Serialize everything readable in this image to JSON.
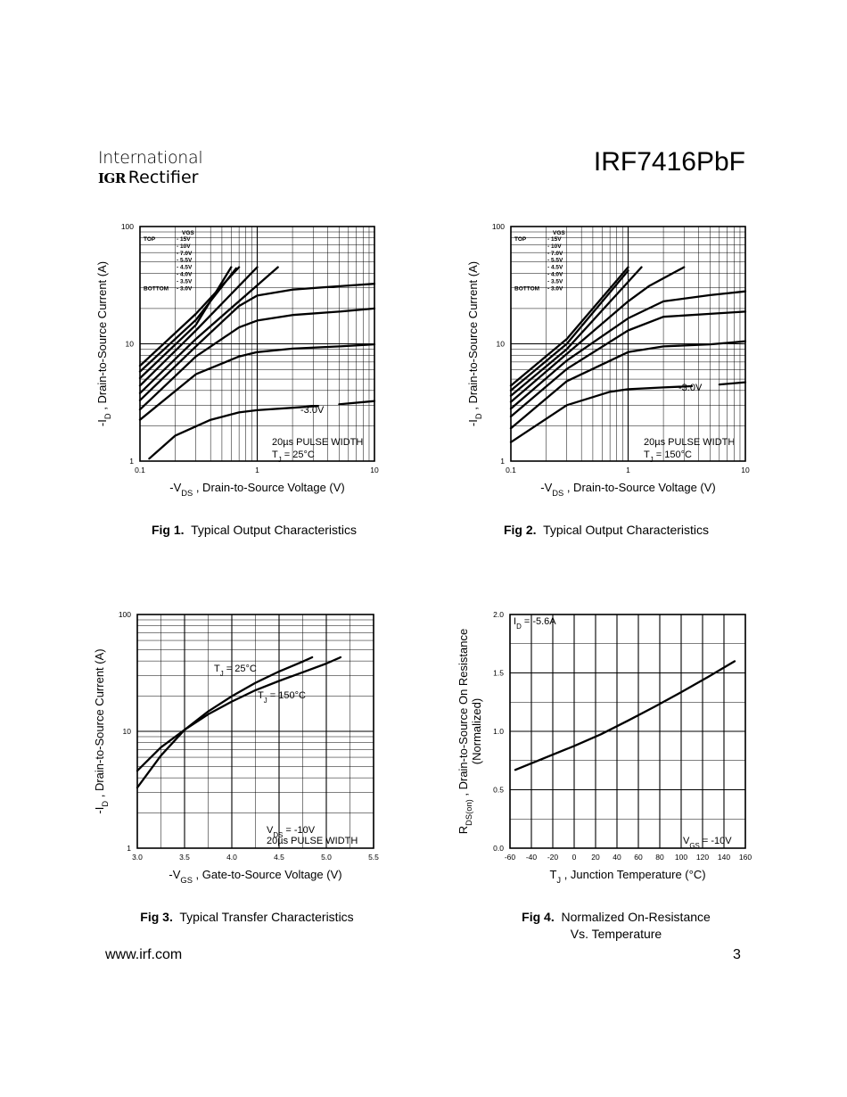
{
  "header": {
    "company_line1": "International",
    "company_logo_mark": "IGR",
    "company_line2": "Rectifier",
    "part_number": "IRF7416PbF"
  },
  "footer": {
    "url": "www.irf.com",
    "page_number": "3"
  },
  "captions": [
    {
      "fig": "Fig 1.",
      "text": "Typical Output Characteristics"
    },
    {
      "fig": "Fig 2.",
      "text": "Typical Output Characteristics"
    },
    {
      "fig": "Fig 3.",
      "text": "Typical Transfer Characteristics"
    },
    {
      "fig": "Fig 4.",
      "text": "Normalized On-Resistance",
      "text2": "Vs. Temperature"
    }
  ],
  "chart_data": [
    {
      "type": "line",
      "xscale": "log",
      "yscale": "log",
      "xlim": [
        0.1,
        10
      ],
      "ylim": [
        1,
        100
      ],
      "xticks": [
        "0.1",
        "1",
        "10"
      ],
      "yticks": [
        "1",
        "10",
        "100"
      ],
      "xlabel": "-V_DS , Drain-to-Source Voltage (V)",
      "ylabel": "-I_D , Drain-to-Source Current (A)",
      "legend_title": "VGS",
      "legend_rows": [
        {
          "prefix": "TOP",
          "value": "- 15V"
        },
        {
          "prefix": "",
          "value": "- 10V"
        },
        {
          "prefix": "",
          "value": "- 7.0V"
        },
        {
          "prefix": "",
          "value": "- 5.5V"
        },
        {
          "prefix": "",
          "value": "- 4.5V"
        },
        {
          "prefix": "",
          "value": "- 4.0V"
        },
        {
          "prefix": "",
          "value": "- 3.5V"
        },
        {
          "prefix": "BOTTOM",
          "value": "- 3.0V"
        }
      ],
      "note_lines": [
        "20µs PULSE WIDTH",
        "T_J = 25°C"
      ],
      "annotation": "-3.0V",
      "series": [
        {
          "x": [
            0.1,
            0.3,
            0.7
          ],
          "y": [
            6.5,
            18,
            45
          ]
        },
        {
          "x": [
            0.1,
            0.3,
            0.66
          ],
          "y": [
            5.8,
            16,
            44
          ]
        },
        {
          "x": [
            0.1,
            0.3,
            0.6
          ],
          "y": [
            5.1,
            14.5,
            45
          ]
        },
        {
          "x": [
            0.1,
            0.3,
            1.0
          ],
          "y": [
            4.4,
            13,
            45
          ]
        },
        {
          "x": [
            0.1,
            0.3,
            1.5
          ],
          "y": [
            3.8,
            11,
            45
          ]
        },
        {
          "x": [
            0.1,
            0.3,
            0.7,
            1.0,
            2.0,
            5.0,
            10.0
          ],
          "y": [
            3.3,
            9.5,
            21,
            25.8,
            29,
            31,
            32.5
          ]
        },
        {
          "x": [
            0.1,
            0.3,
            0.7,
            1.0,
            2.0,
            5.0,
            10.0
          ],
          "y": [
            2.75,
            7.8,
            13.8,
            15.8,
            17.6,
            18.8,
            20
          ]
        },
        {
          "x": [
            0.1,
            0.3,
            0.7,
            1.0,
            2.0,
            5.0,
            10.0
          ],
          "y": [
            2.25,
            5.5,
            7.8,
            8.5,
            9.1,
            9.5,
            9.9
          ]
        },
        {
          "x": [
            0.12,
            0.2,
            0.4,
            0.7,
            1.0,
            2.0,
            3.3
          ],
          "y": [
            1.05,
            1.65,
            2.25,
            2.6,
            2.72,
            2.85,
            2.95
          ]
        },
        {
          "x": [
            5.0,
            10.0
          ],
          "y": [
            3.05,
            3.25
          ]
        }
      ]
    },
    {
      "type": "line",
      "xscale": "log",
      "yscale": "log",
      "xlim": [
        0.1,
        10
      ],
      "ylim": [
        1,
        100
      ],
      "xticks": [
        "0.1",
        "1",
        "10"
      ],
      "yticks": [
        "1",
        "10",
        "100"
      ],
      "xlabel": "-V_DS , Drain-to-Source Voltage (V)",
      "ylabel": "-I_D , Drain-to-Source Current (A)",
      "legend_title": "VGS",
      "legend_rows": [
        {
          "prefix": "TOP",
          "value": "- 15V"
        },
        {
          "prefix": "",
          "value": "- 10V"
        },
        {
          "prefix": "",
          "value": "- 7.0V"
        },
        {
          "prefix": "",
          "value": "- 5.5V"
        },
        {
          "prefix": "",
          "value": "- 4.5V"
        },
        {
          "prefix": "",
          "value": "- 4.0V"
        },
        {
          "prefix": "",
          "value": "- 3.5V"
        },
        {
          "prefix": "BOTTOM",
          "value": "- 3.0V"
        }
      ],
      "note_lines": [
        "20µs PULSE WIDTH",
        "T_J = 150°C"
      ],
      "annotation": "-3.0V",
      "series": [
        {
          "x": [
            0.1,
            0.3,
            1.0
          ],
          "y": [
            4.4,
            11,
            45
          ]
        },
        {
          "x": [
            0.1,
            0.3,
            1.0
          ],
          "y": [
            4.0,
            10,
            42
          ]
        },
        {
          "x": [
            0.1,
            0.3,
            1.3
          ],
          "y": [
            3.6,
            9,
            45
          ]
        },
        {
          "x": [
            0.1,
            0.3,
            1.0,
            1.5,
            3.0
          ],
          "y": [
            3.2,
            8.2,
            23,
            31,
            45
          ]
        },
        {
          "x": [
            0.1,
            0.3,
            1.0,
            2.0,
            5.0,
            10.0
          ],
          "y": [
            2.8,
            7.2,
            16.5,
            23,
            26,
            28
          ]
        },
        {
          "x": [
            0.1,
            0.3,
            1.0,
            2.0,
            5.0,
            10.0
          ],
          "y": [
            2.4,
            6.1,
            13,
            17,
            18,
            18.8
          ]
        },
        {
          "x": [
            0.1,
            0.3,
            1.0,
            2.0,
            5.0,
            10.0
          ],
          "y": [
            1.9,
            4.8,
            8.5,
            9.5,
            9.9,
            10.5
          ]
        },
        {
          "x": [
            0.1,
            0.3,
            0.7,
            1.0,
            2.0,
            3.5
          ],
          "y": [
            1.45,
            3.0,
            3.9,
            4.1,
            4.25,
            4.35
          ]
        },
        {
          "x": [
            6.0,
            10.0
          ],
          "y": [
            4.5,
            4.7
          ]
        }
      ]
    },
    {
      "type": "line",
      "xscale": "linear",
      "yscale": "log",
      "xlim": [
        3.0,
        5.5
      ],
      "ylim": [
        1,
        100
      ],
      "xticks": [
        "3.0",
        "3.5",
        "4.0",
        "4.5",
        "5.0",
        "5.5"
      ],
      "yticks": [
        "1",
        "10",
        "100"
      ],
      "xlabel": "-V_GS , Gate-to-Source Voltage (V)",
      "ylabel": "-I_D , Drain-to-Source Current (A)",
      "note_lines": [
        "V_DS = -10V",
        "20µs PULSE WIDTH"
      ],
      "series": [
        {
          "name": "T_J = 25°C",
          "x": [
            3.0,
            3.25,
            3.5,
            3.75,
            4.0,
            4.25,
            4.5,
            4.75,
            4.85
          ],
          "y": [
            3.3,
            6.2,
            10.3,
            14.8,
            20,
            26,
            32.5,
            39.5,
            43
          ]
        },
        {
          "name": "T_J = 150°C",
          "x": [
            3.0,
            3.25,
            3.5,
            3.75,
            4.0,
            4.25,
            4.5,
            4.75,
            5.0,
            5.15
          ],
          "y": [
            4.6,
            7.3,
            10.3,
            14,
            18,
            22.5,
            27,
            32,
            38,
            43
          ]
        }
      ]
    },
    {
      "type": "line",
      "xscale": "linear",
      "yscale": "linear",
      "xlim": [
        -60,
        160
      ],
      "ylim": [
        0.0,
        2.0
      ],
      "xticks": [
        "-60",
        "-40",
        "-20",
        "0",
        "20",
        "40",
        "60",
        "80",
        "100",
        "120",
        "140",
        "160"
      ],
      "yticks": [
        "0.0",
        "0.5",
        "1.0",
        "1.5",
        "2.0"
      ],
      "xlabel": "T_J , Junction Temperature (°C)",
      "ylabel": "R_DS(on) , Drain-to-Source On Resistance",
      "ylabel2": "(Normalized)",
      "note_lines": [
        "I_D = -5.6A",
        "V_GS = -10V"
      ],
      "series": [
        {
          "x": [
            -55,
            0,
            25,
            50,
            75,
            100,
            125,
            150
          ],
          "y": [
            0.67,
            0.875,
            0.975,
            1.09,
            1.21,
            1.335,
            1.465,
            1.6
          ]
        }
      ]
    }
  ]
}
